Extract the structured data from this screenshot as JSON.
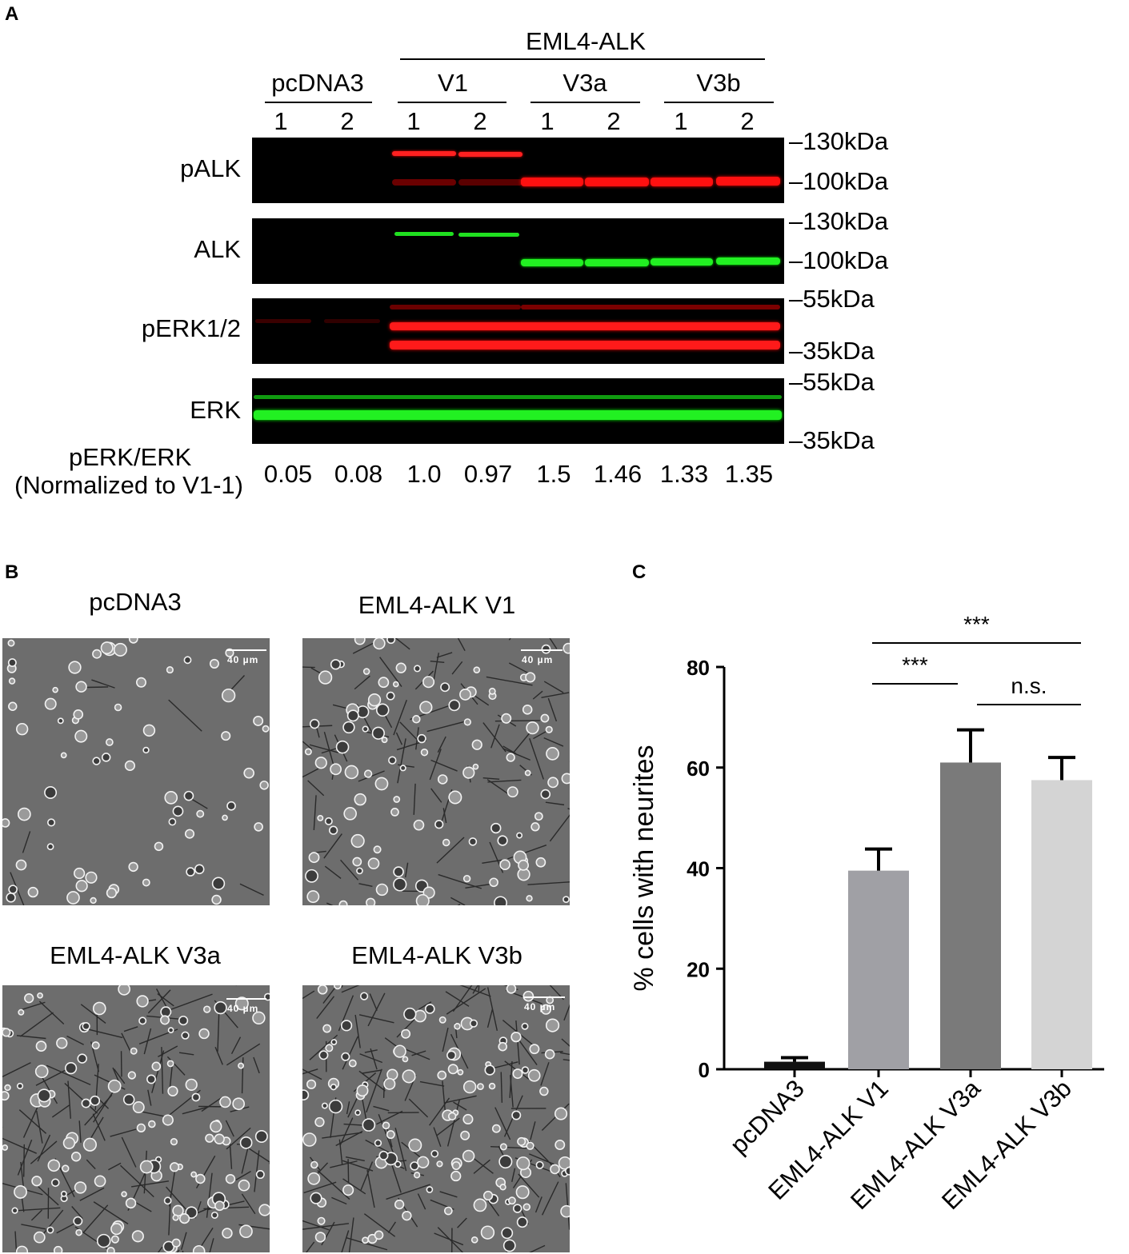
{
  "panel_a": {
    "letter": "A",
    "group_label": "EML4-ALK",
    "conditions": [
      {
        "label": "pcDNA3",
        "lanes": [
          "1",
          "2"
        ]
      },
      {
        "label": "V1",
        "lanes": [
          "1",
          "2"
        ]
      },
      {
        "label": "V3a",
        "lanes": [
          "1",
          "2"
        ]
      },
      {
        "label": "V3b",
        "lanes": [
          "1",
          "2"
        ]
      }
    ],
    "blots": [
      {
        "label": "pALK",
        "color": "#ff1a1a",
        "markers": [
          "130kDa",
          "100kDa"
        ]
      },
      {
        "label": "ALK",
        "color": "#19e619",
        "markers": [
          "130kDa",
          "100kDa"
        ]
      },
      {
        "label": "pERK1/2",
        "color": "#ff1a1a",
        "markers": [
          "55kDa",
          "35kDa"
        ]
      },
      {
        "label": "ERK",
        "color": "#19e619",
        "markers": [
          "55kDa",
          "35kDa"
        ]
      }
    ],
    "ratio_label_line1": "pERK/ERK",
    "ratio_label_line2": "(Normalized to V1-1)",
    "ratios": [
      "0.05",
      "0.08",
      "1.0",
      "0.97",
      "1.5",
      "1.46",
      "1.33",
      "1.35"
    ]
  },
  "panel_b": {
    "letter": "B",
    "images": [
      {
        "title": "pcDNA3",
        "scale_label": "40 µm"
      },
      {
        "title": "EML4-ALK V1",
        "scale_label": "40 µm"
      },
      {
        "title": "EML4-ALK V3a",
        "scale_label": "40 µm"
      },
      {
        "title": "EML4-ALK V3b",
        "scale_label": "40 µm"
      }
    ]
  },
  "panel_c": {
    "letter": "C",
    "chart_data": {
      "type": "bar",
      "categories": [
        "pcDNA3",
        "EML4-ALK V1",
        "EML4-ALK V3a",
        "EML4-ALK V3b"
      ],
      "values": [
        1.5,
        39.5,
        61,
        57.5
      ],
      "errors": [
        0.8,
        4.3,
        6.5,
        4.5
      ],
      "bar_colors": [
        "#111111",
        "#a0a0a5",
        "#7a7a7a",
        "#d4d4d4"
      ],
      "ylabel": "% cells with neurites",
      "xlabel": "",
      "ylim": [
        0,
        80
      ],
      "yticks": [
        "0",
        "20",
        "40",
        "60",
        "80"
      ],
      "significance": [
        {
          "from": 1,
          "to": 3,
          "label": "***"
        },
        {
          "from": 1,
          "to": 2,
          "label": "***"
        },
        {
          "from": 2,
          "to": 3,
          "label": "n.s."
        }
      ]
    }
  }
}
